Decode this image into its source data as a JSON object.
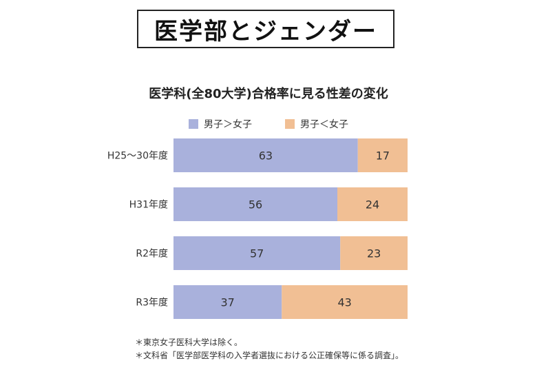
{
  "banner_title": "医学部とジェンダー",
  "colors": {
    "male_higher": "#a9b1dc",
    "female_higher": "#f1bf94"
  },
  "chart_data": {
    "type": "bar",
    "orientation": "horizontal",
    "stacked": true,
    "title": "医学科(全80大学)合格率に見る性差の変化",
    "legend_position": "top",
    "categories": [
      "H25〜30年度",
      "H31年度",
      "R2年度",
      "R3年度"
    ],
    "series": [
      {
        "name": "男子＞女子",
        "values": [
          63,
          56,
          57,
          37
        ]
      },
      {
        "name": "男子＜女子",
        "values": [
          17,
          24,
          23,
          43
        ]
      }
    ],
    "xlim": [
      0,
      80
    ],
    "data_labels": true,
    "grid": false
  },
  "notes": [
    "＊東京女子医科大学は除く。",
    "＊文科省「医学部医学科の入学者選抜における公正確保等に係る調査」。"
  ]
}
